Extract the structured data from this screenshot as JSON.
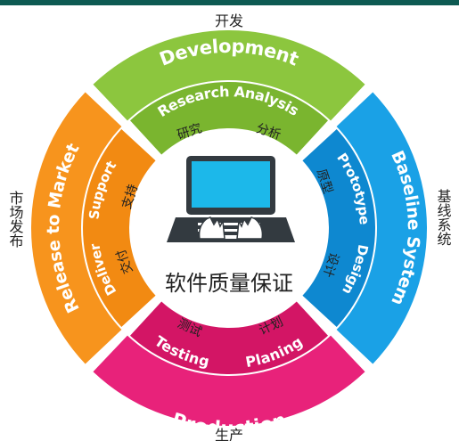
{
  "center": {
    "label": "软件质量保证"
  },
  "sectors": {
    "development": {
      "title": "Development",
      "outer_label": "开发",
      "sub1": "Research",
      "sub1_zh": "研究",
      "sub2": "Analysis",
      "sub2_zh": "分析",
      "color": "#8cc63e",
      "inner_color": "#7ab52f"
    },
    "baseline": {
      "title": "Baseline System",
      "outer_label": "基线系统",
      "sub1": "Prototype",
      "sub1_zh": "原型",
      "sub2": "Design",
      "sub2_zh": "设计",
      "color": "#1aa1e6",
      "inner_color": "#0e88d0"
    },
    "production": {
      "title": "Production",
      "outer_label": "生产",
      "sub1": "Testing",
      "sub1_zh": "测试",
      "sub2": "Planing",
      "sub2_zh": "计划",
      "color": "#e8227a",
      "inner_color": "#d31565"
    },
    "release": {
      "title": "Release to Market",
      "outer_label": "市场发布",
      "sub1": "Support",
      "sub1_zh": "支持",
      "sub2": "Deliver",
      "sub2_zh": "交付",
      "color": "#f7941d",
      "inner_color": "#f28a12"
    }
  },
  "icons": {
    "center": "laptop-with-hands-icon"
  }
}
